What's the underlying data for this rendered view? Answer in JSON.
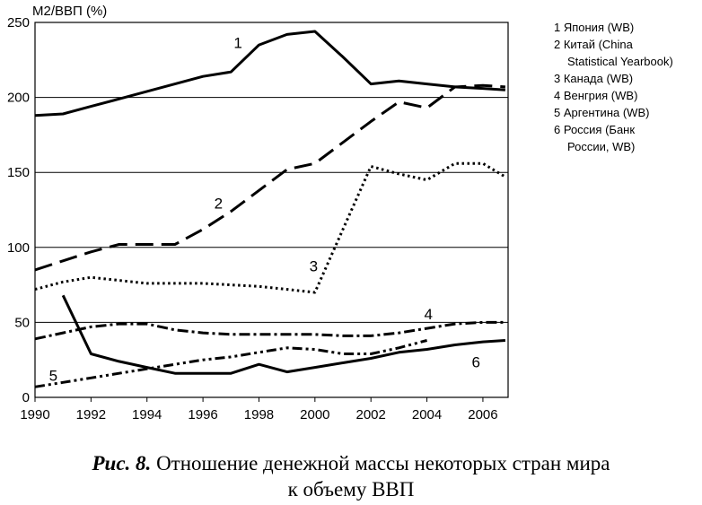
{
  "chart_data": {
    "type": "line",
    "ylabel": "М2/ВВП (%)",
    "xlabel": "",
    "xlim": [
      1990,
      2006.9
    ],
    "ylim": [
      0,
      250
    ],
    "xticks": [
      1990,
      1992,
      1994,
      1996,
      1998,
      2000,
      2002,
      2004,
      2006
    ],
    "yticks": [
      0,
      50,
      100,
      150,
      200,
      250
    ],
    "grid": "horizontal",
    "legend": {
      "placement": "right",
      "entries": [
        [
          "1 Япония (WB)"
        ],
        [
          "2 Китай (China",
          "Statistical Yearbook)"
        ],
        [
          "3 Канада (WB)"
        ],
        [
          "4 Венгрия (WB)"
        ],
        [
          "5 Аргентина (WB)"
        ],
        [
          "6 Россия (Банк",
          "России, WB)"
        ]
      ]
    },
    "series": [
      {
        "label": "1",
        "dash": "solid",
        "points": [
          [
            1990,
            188
          ],
          [
            1991,
            189
          ],
          [
            1992,
            194
          ],
          [
            1993,
            199
          ],
          [
            1994,
            204
          ],
          [
            1995,
            209
          ],
          [
            1996,
            214
          ],
          [
            1997,
            217
          ],
          [
            1998,
            235
          ],
          [
            1999,
            242
          ],
          [
            2000,
            244
          ],
          [
            2001,
            227
          ],
          [
            2002,
            209
          ],
          [
            2003,
            211
          ],
          [
            2004,
            209
          ],
          [
            2005,
            207
          ],
          [
            2006,
            206
          ],
          [
            2006.8,
            205
          ]
        ]
      },
      {
        "label": "2",
        "dash": "long-dash",
        "points": [
          [
            1990,
            85
          ],
          [
            1991,
            91
          ],
          [
            1992,
            97
          ],
          [
            1993,
            102
          ],
          [
            1994,
            102
          ],
          [
            1995,
            102
          ],
          [
            1996,
            112
          ],
          [
            1997,
            124
          ],
          [
            1998,
            138
          ],
          [
            1999,
            152
          ],
          [
            2000,
            156
          ],
          [
            2001,
            170
          ],
          [
            2002,
            184
          ],
          [
            2003,
            197
          ],
          [
            2004,
            193
          ],
          [
            2005,
            207
          ],
          [
            2006,
            208
          ],
          [
            2006.8,
            207
          ]
        ]
      },
      {
        "label": "3",
        "dash": "dotted",
        "points": [
          [
            1990,
            72
          ],
          [
            1991,
            77
          ],
          [
            1992,
            80
          ],
          [
            1993,
            78
          ],
          [
            1994,
            76
          ],
          [
            1995,
            76
          ],
          [
            1996,
            76
          ],
          [
            1997,
            75
          ],
          [
            1998,
            74
          ],
          [
            1999,
            72
          ],
          [
            2000,
            70
          ],
          [
            2001,
            112
          ],
          [
            2002,
            154
          ],
          [
            2003,
            149
          ],
          [
            2004,
            145
          ],
          [
            2005,
            156
          ],
          [
            2006,
            156
          ],
          [
            2006.8,
            147
          ]
        ]
      },
      {
        "label": "4",
        "dash": "dash-dot",
        "points": [
          [
            1990,
            39
          ],
          [
            1991,
            43
          ],
          [
            1992,
            47
          ],
          [
            1993,
            49
          ],
          [
            1994,
            49
          ],
          [
            1995,
            45
          ],
          [
            1996,
            43
          ],
          [
            1997,
            42
          ],
          [
            1998,
            42
          ],
          [
            1999,
            42
          ],
          [
            2000,
            42
          ],
          [
            2001,
            41
          ],
          [
            2002,
            41
          ],
          [
            2003,
            43
          ],
          [
            2004,
            46
          ],
          [
            2005,
            49
          ],
          [
            2006,
            50
          ],
          [
            2006.8,
            50
          ]
        ]
      },
      {
        "label": "5",
        "dash": "dash-dot-dot",
        "points": [
          [
            1990,
            7
          ],
          [
            1991,
            10
          ],
          [
            1992,
            13
          ],
          [
            1993,
            16
          ],
          [
            1994,
            19
          ],
          [
            1995,
            22
          ],
          [
            1996,
            25
          ],
          [
            1997,
            27
          ],
          [
            1998,
            30
          ],
          [
            1999,
            33
          ],
          [
            2000,
            32
          ],
          [
            2001,
            29
          ],
          [
            2002,
            29
          ],
          [
            2003,
            33
          ],
          [
            2004,
            38
          ]
        ]
      },
      {
        "label": "6",
        "dash": "solid",
        "points": [
          [
            1991,
            68
          ],
          [
            1992,
            29
          ],
          [
            1993,
            24
          ],
          [
            1994,
            20
          ],
          [
            1995,
            16
          ],
          [
            1996,
            16
          ],
          [
            1997,
            16
          ],
          [
            1998,
            22
          ],
          [
            1999,
            17
          ],
          [
            2000,
            20
          ],
          [
            2001,
            23
          ],
          [
            2002,
            26
          ],
          [
            2003,
            30
          ],
          [
            2004,
            32
          ],
          [
            2005,
            35
          ],
          [
            2006,
            37
          ],
          [
            2006.8,
            38
          ]
        ]
      }
    ]
  },
  "caption": {
    "lead": "Рис. 8.",
    "line1": " Отношение денежной массы некоторых стран мира",
    "line2": "к объему ВВП"
  }
}
